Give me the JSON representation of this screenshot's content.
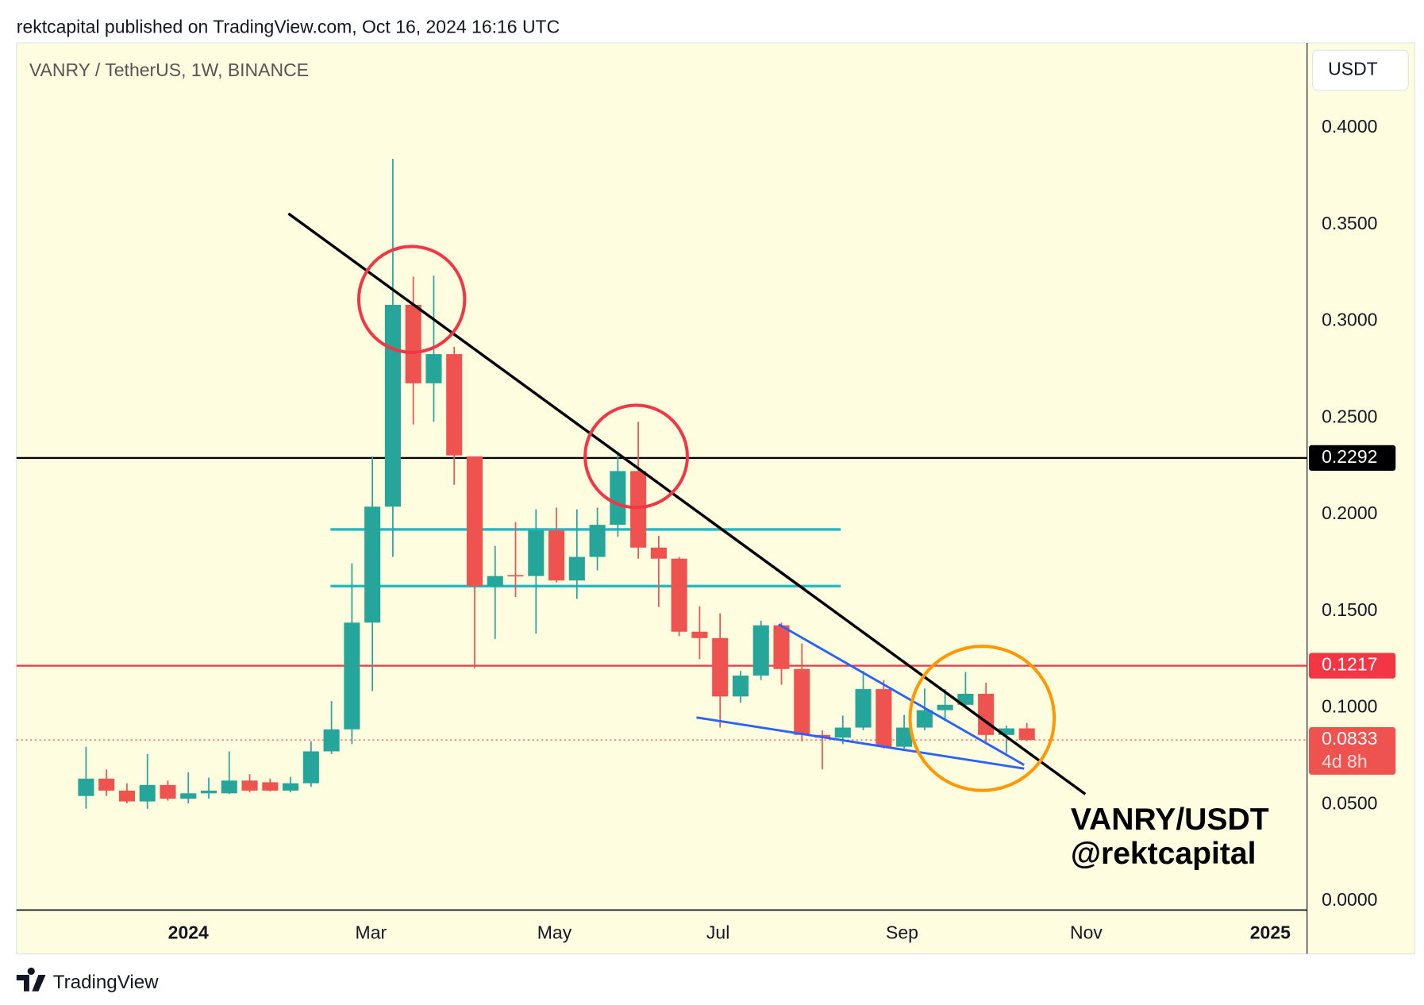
{
  "header": "rektcapital published on TradingView.com, Oct 16, 2024 16:16 UTC",
  "footer": "TradingView",
  "chart_data": {
    "type": "candlestick",
    "title": "VANRY / TetherUS, 1W, BINANCE",
    "currency": "USDT",
    "watermark": [
      "VANRY/USDT",
      "@rektcapital"
    ],
    "up_color": "#26a69a",
    "down_color": "#ef5350",
    "open": [
      0.0543,
      0.0633,
      0.0571,
      0.0515,
      0.06,
      0.0529,
      0.0557,
      0.0557,
      0.0623,
      0.0614,
      0.0571,
      0.0609,
      0.0774,
      0.0888,
      0.144,
      0.204,
      0.3084,
      0.2678,
      0.2829,
      0.23,
      0.1629,
      0.1686,
      0.1681,
      0.1917,
      0.1658,
      0.178,
      0.1946,
      0.2224,
      0.1828,
      0.1771,
      0.1393,
      0.136,
      0.1058,
      0.1166,
      0.1426,
      0.12,
      0.0859,
      0.0845,
      0.0897,
      0.1096,
      0.0798,
      0.0897,
      0.0987,
      0.1015,
      0.1072,
      0.0859,
      0.0893
    ],
    "high": [
      0.0798,
      0.068,
      0.0609,
      0.076,
      0.0623,
      0.0666,
      0.0638,
      0.0774,
      0.0656,
      0.0633,
      0.0642,
      0.0826,
      0.1034,
      0.1747,
      0.23,
      0.3839,
      0.323,
      0.3235,
      0.2867,
      0.23,
      0.1837,
      0.196,
      0.2026,
      0.2035,
      0.2026,
      0.2035,
      0.2323,
      0.2479,
      0.1889,
      0.178,
      0.1525,
      0.1488,
      0.119,
      0.145,
      0.144,
      0.1332,
      0.0883,
      0.0959,
      0.119,
      0.1143,
      0.0963,
      0.11,
      0.1096,
      0.1185,
      0.1129,
      0.0907,
      0.0921
    ],
    "low": [
      0.0477,
      0.0543,
      0.0505,
      0.0477,
      0.0519,
      0.0505,
      0.0529,
      0.0553,
      0.0562,
      0.0567,
      0.0562,
      0.059,
      0.076,
      0.0812,
      0.1086,
      0.178,
      0.2465,
      0.2479,
      0.2153,
      0.1204,
      0.1355,
      0.1573,
      0.1384,
      0.1648,
      0.1563,
      0.171,
      0.1884,
      0.1771,
      0.1521,
      0.137,
      0.1251,
      0.0897,
      0.1025,
      0.1143,
      0.1119,
      0.0826,
      0.068,
      0.0812,
      0.0883,
      0.0789,
      0.0789,
      0.0883,
      0.093,
      0.0996,
      0.0812,
      0.0765,
      0.0826
    ],
    "close": [
      0.0633,
      0.0571,
      0.0515,
      0.06,
      0.0529,
      0.0557,
      0.0571,
      0.0623,
      0.0571,
      0.0571,
      0.0609,
      0.0774,
      0.0888,
      0.144,
      0.204,
      0.3084,
      0.2678,
      0.2829,
      0.2305,
      0.1629,
      0.1681,
      0.1681,
      0.1917,
      0.1658,
      0.178,
      0.1946,
      0.2224,
      0.1828,
      0.1771,
      0.1393,
      0.136,
      0.1058,
      0.1166,
      0.1426,
      0.12,
      0.0859,
      0.0845,
      0.0897,
      0.1096,
      0.0798,
      0.0897,
      0.0987,
      0.1015,
      0.1072,
      0.0859,
      0.0893,
      0.0833
    ],
    "xlim": [
      -3.4,
      59.7
    ],
    "xticks": [
      {
        "value": 5,
        "label": "2024"
      },
      {
        "value": 13.93,
        "label": "Mar"
      },
      {
        "value": 22.9,
        "label": "May"
      },
      {
        "value": 30.9,
        "label": "Jul"
      },
      {
        "value": 39.9,
        "label": "Sep"
      },
      {
        "value": 48.9,
        "label": "Nov"
      },
      {
        "value": 57.9,
        "label": "2025"
      }
    ],
    "ylim": [
      -0.0047,
      0.4439
    ],
    "yticks": [
      {
        "value": 0,
        "label": "0.0000"
      },
      {
        "value": 0.05,
        "label": "0.0500"
      },
      {
        "value": 0.1,
        "label": "0.1000"
      },
      {
        "value": 0.15,
        "label": "0.1500"
      },
      {
        "value": 0.2,
        "label": "0.2000"
      },
      {
        "value": 0.25,
        "label": "0.2500"
      },
      {
        "value": 0.3,
        "label": "0.3000"
      },
      {
        "value": 0.35,
        "label": "0.3500"
      },
      {
        "value": 0.4,
        "label": "0.4000"
      }
    ],
    "price_levels": [
      {
        "value": 0.2292,
        "label": "0.2292",
        "color": "#000000"
      },
      {
        "value": 0.1217,
        "label": "0.1217",
        "color": "#f23645"
      }
    ],
    "support_levels": [
      {
        "value": 0.1922,
        "color": "#22b8c6"
      },
      {
        "value": 0.1629,
        "color": "#22b8c6"
      }
    ],
    "last_price": {
      "value": 0.0833,
      "label": "0.0833",
      "countdown": "4d 8h",
      "color": "#ef5350"
    }
  }
}
